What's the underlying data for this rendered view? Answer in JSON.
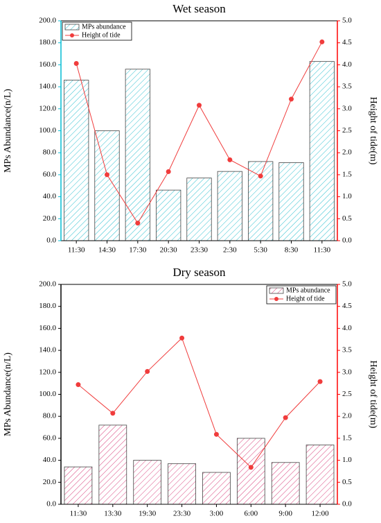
{
  "chart_data": [
    {
      "type": "bar-line",
      "title": "Wet season",
      "categories": [
        "11:30",
        "14:30",
        "17:30",
        "20:30",
        "23:30",
        "2:30",
        "5:30",
        "8:30",
        "11:30"
      ],
      "series": [
        {
          "name": "MPs abundance",
          "color": "#2bbfcf",
          "values": [
            146,
            100,
            156,
            46,
            57,
            63,
            72,
            71,
            163
          ]
        },
        {
          "name": "Height of tide",
          "color": "#f03c3c",
          "axis": "y2",
          "values": [
            4.03,
            1.5,
            0.4,
            1.57,
            3.08,
            1.84,
            1.47,
            3.22,
            4.52
          ]
        }
      ],
      "ylabel": "MPs Abundance(n/L)",
      "y2label": "Height of tide(m)",
      "ylim": [
        0,
        200
      ],
      "yticks": [
        {
          "value": 0,
          "label": "0.0"
        },
        {
          "value": 20,
          "label": "20.0"
        },
        {
          "value": 40,
          "label": "40.0"
        },
        {
          "value": 60,
          "label": "60.0"
        },
        {
          "value": 80,
          "label": "80.0"
        },
        {
          "value": 100,
          "label": "100.0"
        },
        {
          "value": 120,
          "label": "120.0"
        },
        {
          "value": 140,
          "label": "140.0"
        },
        {
          "value": 160,
          "label": "160.0"
        },
        {
          "value": 180,
          "label": "180.0"
        },
        {
          "value": 200,
          "label": "200.0"
        }
      ],
      "y2lim": [
        0,
        5
      ],
      "y2ticks": [
        {
          "value": 0,
          "label": "0.0"
        },
        0.5,
        {
          "value": 1,
          "label": "1.0"
        },
        1.5,
        {
          "value": 2,
          "label": "2.0"
        },
        2.5,
        {
          "value": 3,
          "label": "3.0"
        },
        3.5,
        {
          "value": 4,
          "label": "4.0"
        },
        4.5,
        {
          "value": 5,
          "label": "5.0"
        }
      ],
      "legend": "upper left",
      "y_axis_color": "#00bcd4",
      "y2_axis_color": "#ff0000"
    },
    {
      "type": "bar-line",
      "title": "Dry season",
      "categories": [
        "11:30",
        "13:30",
        "19:30",
        "23:30",
        "3:00",
        "6:00",
        "9:00",
        "12:00"
      ],
      "series": [
        {
          "name": "MPs abundance",
          "color": "#d9457f",
          "values": [
            34,
            72,
            40,
            37,
            29,
            60,
            38,
            54
          ]
        },
        {
          "name": "Height of tide",
          "color": "#f03c3c",
          "axis": "y2",
          "values": [
            2.72,
            2.07,
            3.02,
            3.78,
            1.59,
            0.84,
            1.97,
            2.79
          ]
        }
      ],
      "ylabel": "MPs Abundance(n/L)",
      "y2label": "Height of tide(m)",
      "ylim": [
        0,
        200
      ],
      "yticks": [
        {
          "value": 0,
          "label": "0.0"
        },
        {
          "value": 20,
          "label": "20.0"
        },
        {
          "value": 40,
          "label": "40.0"
        },
        {
          "value": 60,
          "label": "60.0"
        },
        {
          "value": 80,
          "label": "80.0"
        },
        {
          "value": 100,
          "label": "100.0"
        },
        {
          "value": 120,
          "label": "120.0"
        },
        {
          "value": 140,
          "label": "140.0"
        },
        {
          "value": 160,
          "label": "160.0"
        },
        {
          "value": 180,
          "label": "180.0"
        },
        {
          "value": 200,
          "label": "200.0"
        }
      ],
      "y2lim": [
        0,
        5
      ],
      "y2ticks": [
        {
          "value": 0,
          "label": "0.0"
        },
        0.5,
        {
          "value": 1,
          "label": "1.0"
        },
        1.5,
        {
          "value": 2,
          "label": "2.0"
        },
        2.5,
        {
          "value": 3,
          "label": "3.0"
        },
        3.5,
        {
          "value": 4,
          "label": "4.0"
        },
        4.5,
        {
          "value": 5,
          "label": "5.0"
        }
      ],
      "legend": "upper right",
      "y_axis_color": "#000000",
      "y2_axis_color": "#ff0000"
    }
  ]
}
